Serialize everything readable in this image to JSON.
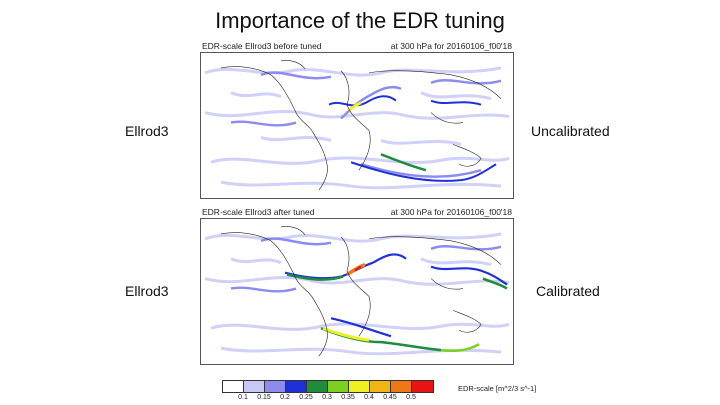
{
  "slide": {
    "title": "Importance of the EDR tuning"
  },
  "panels": [
    {
      "left_label": "Ellrod3",
      "right_label": "Uncalibrated",
      "header_left": "EDR-scale Ellrod3 before tuned",
      "header_right": "at 300 hPa for 20160106_f00'18",
      "tuned": false
    },
    {
      "left_label": "Ellrod3",
      "right_label": "Calibrated",
      "header_left": "EDR-scale Ellrod3 after tuned",
      "header_right": "at 300 hPa for 20160106_f00'18",
      "tuned": true
    }
  ],
  "colorbar": {
    "label": "EDR-scale [m^2/3 s^-1]",
    "ticks": [
      "0.1",
      "0.15",
      "0.2",
      "0.25",
      "0.3",
      "0.35",
      "0.4",
      "0.45",
      "0.5"
    ],
    "colors": [
      "#ffffff",
      "#c8c8f8",
      "#8c8cf0",
      "#2030d8",
      "#1e8c3c",
      "#7cd020",
      "#f0f020",
      "#f0b414",
      "#f07814",
      "#e81414"
    ]
  }
}
